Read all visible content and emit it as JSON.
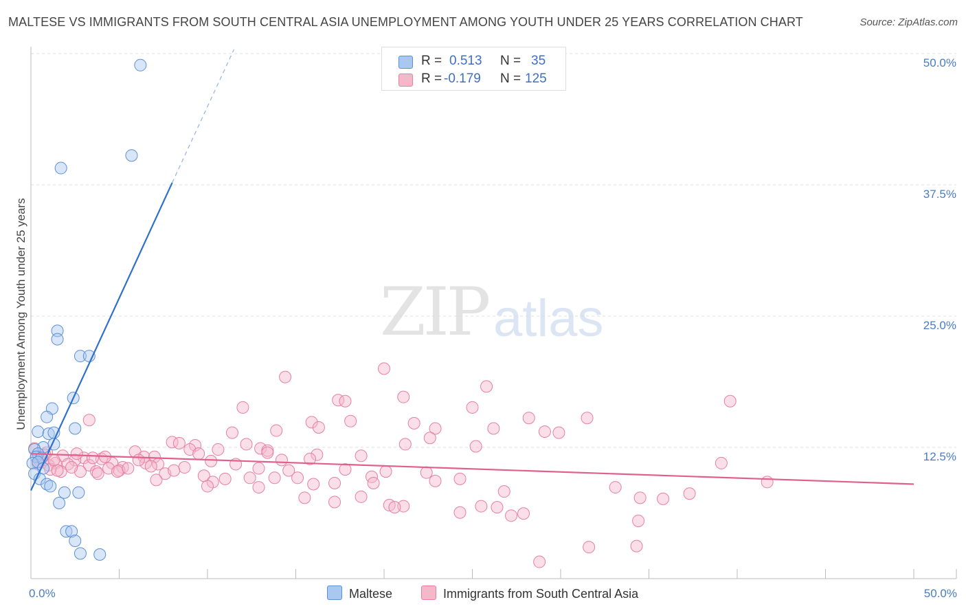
{
  "header": {
    "title": "MALTESE VS IMMIGRANTS FROM SOUTH CENTRAL ASIA UNEMPLOYMENT AMONG YOUTH UNDER 25 YEARS CORRELATION CHART",
    "source": "Source: ZipAtlas.com"
  },
  "watermark": {
    "zip": "ZIP",
    "atlas": "atlas"
  },
  "legend": {
    "rows": [
      {
        "r_label": "R =",
        "r_value": "0.513",
        "n_label": "N =",
        "n_value": "35",
        "color": "#a8c8f0"
      },
      {
        "r_label": "R =",
        "r_value": "-0.179",
        "n_label": "N =",
        "n_value": "125",
        "color": "#f5b8cb"
      }
    ]
  },
  "bottom_legend": {
    "series1": "Maltese",
    "series2": "Immigrants from South Central Asia"
  },
  "chart_data": {
    "type": "scatter",
    "title": "MALTESE VS IMMIGRANTS FROM SOUTH CENTRAL ASIA UNEMPLOYMENT AMONG YOUTH UNDER 25 YEARS CORRELATION CHART",
    "xlabel": "",
    "ylabel": "Unemployment Among Youth under 25 years",
    "xlim": [
      0,
      50
    ],
    "ylim": [
      0,
      50
    ],
    "x_tick_labels": [
      "0.0%",
      "50.0%"
    ],
    "y_ticks": [
      12.5,
      25.0,
      37.5,
      50.0
    ],
    "y_tick_labels": [
      "12.5%",
      "25.0%",
      "37.5%",
      "50.0%"
    ],
    "grid": true,
    "series": [
      {
        "name": "Maltese",
        "color": "#a8c8f0",
        "stroke": "#5b8fd6",
        "trend": {
          "x0": 0,
          "y0": 8.4,
          "x1": 8.0,
          "y1": 37.7,
          "dashed_to_x": 11.5,
          "dashed_to_y": 50.4,
          "color": "#2f6fcc"
        },
        "points": [
          [
            6.2,
            48.9
          ],
          [
            5.7,
            40.3
          ],
          [
            1.7,
            39.1
          ],
          [
            1.5,
            23.6
          ],
          [
            1.5,
            22.8
          ],
          [
            2.8,
            21.2
          ],
          [
            3.3,
            21.2
          ],
          [
            2.4,
            17.2
          ],
          [
            1.2,
            16.2
          ],
          [
            0.9,
            15.4
          ],
          [
            2.5,
            14.3
          ],
          [
            0.4,
            14.0
          ],
          [
            1.0,
            13.8
          ],
          [
            1.3,
            13.9
          ],
          [
            1.3,
            12.8
          ],
          [
            0.7,
            12.5
          ],
          [
            0.2,
            12.3
          ],
          [
            0.4,
            11.9
          ],
          [
            0.3,
            11.6
          ],
          [
            0.6,
            11.5
          ],
          [
            0.1,
            11.0
          ],
          [
            0.4,
            11.1
          ],
          [
            0.7,
            10.5
          ],
          [
            0.2,
            10.0
          ],
          [
            0.5,
            9.5
          ],
          [
            0.9,
            9.0
          ],
          [
            1.1,
            8.8
          ],
          [
            1.9,
            8.2
          ],
          [
            2.7,
            8.2
          ],
          [
            1.6,
            7.2
          ],
          [
            2.0,
            4.5
          ],
          [
            2.3,
            4.5
          ],
          [
            2.5,
            3.6
          ],
          [
            2.8,
            2.4
          ],
          [
            3.9,
            2.3
          ]
        ]
      },
      {
        "name": "Immigrants from South Central Asia",
        "color": "#f5b8cb",
        "stroke": "#e77fa0",
        "trend": {
          "x0": 0,
          "y0": 11.9,
          "x1": 50,
          "y1": 9.0,
          "color": "#e0608c"
        },
        "points": [
          [
            20.0,
            20.0
          ],
          [
            14.4,
            19.2
          ],
          [
            25.8,
            18.3
          ],
          [
            21.1,
            17.3
          ],
          [
            17.4,
            17.0
          ],
          [
            17.8,
            16.9
          ],
          [
            39.6,
            16.9
          ],
          [
            12.0,
            16.3
          ],
          [
            25.0,
            16.3
          ],
          [
            3.3,
            15.1
          ],
          [
            15.9,
            14.9
          ],
          [
            18.1,
            15.0
          ],
          [
            21.7,
            14.8
          ],
          [
            28.2,
            15.3
          ],
          [
            16.3,
            14.4
          ],
          [
            26.2,
            14.3
          ],
          [
            13.9,
            14.1
          ],
          [
            22.9,
            14.3
          ],
          [
            11.4,
            13.9
          ],
          [
            29.9,
            13.9
          ],
          [
            22.6,
            13.4
          ],
          [
            8.0,
            13.0
          ],
          [
            8.4,
            12.9
          ],
          [
            9.3,
            12.7
          ],
          [
            12.2,
            12.8
          ],
          [
            21.2,
            12.8
          ],
          [
            25.2,
            12.6
          ],
          [
            10.6,
            12.3
          ],
          [
            13.0,
            12.4
          ],
          [
            13.4,
            12.2
          ],
          [
            9.0,
            12.3
          ],
          [
            5.9,
            12.1
          ],
          [
            9.5,
            11.9
          ],
          [
            16.2,
            11.8
          ],
          [
            18.7,
            11.7
          ],
          [
            6.4,
            11.6
          ],
          [
            7.0,
            11.6
          ],
          [
            1.8,
            11.7
          ],
          [
            3.0,
            11.5
          ],
          [
            4.0,
            11.4
          ],
          [
            2.5,
            11.3
          ],
          [
            15.8,
            11.4
          ],
          [
            14.2,
            11.3
          ],
          [
            10.2,
            11.2
          ],
          [
            0.7,
            11.3
          ],
          [
            1.4,
            11.0
          ],
          [
            2.1,
            10.9
          ],
          [
            6.5,
            11.0
          ],
          [
            7.2,
            10.9
          ],
          [
            1.0,
            10.8
          ],
          [
            4.6,
            11.0
          ],
          [
            3.3,
            10.8
          ],
          [
            5.2,
            10.6
          ],
          [
            4.4,
            10.5
          ],
          [
            8.7,
            10.6
          ],
          [
            12.9,
            10.5
          ],
          [
            14.6,
            10.3
          ],
          [
            17.8,
            10.4
          ],
          [
            20.1,
            10.2
          ],
          [
            2.8,
            10.2
          ],
          [
            3.7,
            10.2
          ],
          [
            5.0,
            10.3
          ],
          [
            0.5,
            11.2
          ],
          [
            1.7,
            10.2
          ],
          [
            1.1,
            10.4
          ],
          [
            0.3,
            11.6
          ],
          [
            7.6,
            10.0
          ],
          [
            9.8,
            9.8
          ],
          [
            11.0,
            9.5
          ],
          [
            12.4,
            9.6
          ],
          [
            13.8,
            9.6
          ],
          [
            15.1,
            9.6
          ],
          [
            19.3,
            9.7
          ],
          [
            24.3,
            9.5
          ],
          [
            7.1,
            9.4
          ],
          [
            4.9,
            10.2
          ],
          [
            10.3,
            9.2
          ],
          [
            16.0,
            9.0
          ],
          [
            17.2,
            9.1
          ],
          [
            19.4,
            9.1
          ],
          [
            22.9,
            9.3
          ],
          [
            3.8,
            10.0
          ],
          [
            2.3,
            10.6
          ],
          [
            10.0,
            8.8
          ],
          [
            12.9,
            8.7
          ],
          [
            0.9,
            12.0
          ],
          [
            0.2,
            12.4
          ],
          [
            0.8,
            11.8
          ],
          [
            29.1,
            14.0
          ],
          [
            31.5,
            15.3
          ],
          [
            37.3,
            8.1
          ],
          [
            33.1,
            8.7
          ],
          [
            34.5,
            7.7
          ],
          [
            26.8,
            8.3
          ],
          [
            35.8,
            7.6
          ],
          [
            18.7,
            7.8
          ],
          [
            15.5,
            7.7
          ],
          [
            17.2,
            7.3
          ],
          [
            20.3,
            7.0
          ],
          [
            21.1,
            6.9
          ],
          [
            20.6,
            6.8
          ],
          [
            25.5,
            6.9
          ],
          [
            26.4,
            6.8
          ],
          [
            24.3,
            6.3
          ],
          [
            27.2,
            6.0
          ],
          [
            27.9,
            6.2
          ],
          [
            34.4,
            5.5
          ],
          [
            31.6,
            3.0
          ],
          [
            34.3,
            3.1
          ],
          [
            28.8,
            1.6
          ],
          [
            1.5,
            10.3
          ],
          [
            6.1,
            11.3
          ],
          [
            8.1,
            10.3
          ],
          [
            2.6,
            11.9
          ],
          [
            4.2,
            11.6
          ],
          [
            5.5,
            10.5
          ],
          [
            11.6,
            10.9
          ],
          [
            13.4,
            12.0
          ],
          [
            22.4,
            10.1
          ],
          [
            41.7,
            9.2
          ],
          [
            39.1,
            11.0
          ],
          [
            0.4,
            10.9
          ],
          [
            1.3,
            11.3
          ],
          [
            3.5,
            11.5
          ],
          [
            6.8,
            10.7
          ]
        ]
      }
    ]
  }
}
